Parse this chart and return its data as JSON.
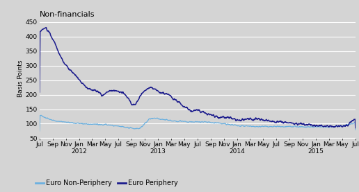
{
  "title": "Non-financials",
  "ylabel": "Basis Points",
  "ylim": [
    50,
    460
  ],
  "yticks": [
    50,
    100,
    150,
    200,
    250,
    300,
    350,
    400,
    450
  ],
  "color_periphery": "#1a1a8c",
  "color_non_periphery": "#6ab0e0",
  "background_color": "#d4d4d4",
  "legend_labels": [
    "Euro Non-Periphery",
    "Euro Periphery"
  ],
  "x_tick_labels": [
    "Jul",
    "Sep",
    "Nov",
    "Jan",
    "Mar",
    "May",
    "Jul",
    "Sep",
    "Nov",
    "Jan",
    "Mar",
    "May",
    "Jul",
    "Sep",
    "Nov",
    "Jan",
    "Mar",
    "May",
    "Jul",
    "Sep",
    "Nov",
    "Jan",
    "Mar",
    "May",
    "Jul"
  ],
  "x_year_labels": {
    "3": "2012",
    "9": "2013",
    "15": "2014",
    "21": "2015"
  },
  "periphery_keypoints": [
    [
      0,
      415
    ],
    [
      10,
      425
    ],
    [
      20,
      432
    ],
    [
      35,
      408
    ],
    [
      50,
      378
    ],
    [
      65,
      340
    ],
    [
      80,
      310
    ],
    [
      100,
      285
    ],
    [
      120,
      265
    ],
    [
      140,
      240
    ],
    [
      155,
      225
    ],
    [
      165,
      218
    ],
    [
      180,
      215
    ],
    [
      195,
      210
    ],
    [
      205,
      195
    ],
    [
      215,
      205
    ],
    [
      230,
      215
    ],
    [
      245,
      215
    ],
    [
      260,
      212
    ],
    [
      275,
      207
    ],
    [
      290,
      190
    ],
    [
      305,
      163
    ],
    [
      315,
      168
    ],
    [
      325,
      185
    ],
    [
      340,
      210
    ],
    [
      355,
      220
    ],
    [
      365,
      225
    ],
    [
      380,
      218
    ],
    [
      395,
      208
    ],
    [
      410,
      205
    ],
    [
      425,
      200
    ],
    [
      440,
      185
    ],
    [
      455,
      175
    ],
    [
      470,
      162
    ],
    [
      485,
      152
    ],
    [
      500,
      143
    ],
    [
      515,
      148
    ],
    [
      525,
      145
    ],
    [
      540,
      138
    ],
    [
      555,
      132
    ],
    [
      570,
      128
    ],
    [
      585,
      125
    ],
    [
      605,
      122
    ],
    [
      625,
      120
    ],
    [
      645,
      115
    ],
    [
      660,
      114
    ],
    [
      675,
      115
    ],
    [
      690,
      118
    ],
    [
      705,
      117
    ],
    [
      720,
      116
    ],
    [
      735,
      113
    ],
    [
      750,
      112
    ],
    [
      765,
      108
    ],
    [
      780,
      108
    ],
    [
      795,
      107
    ],
    [
      810,
      105
    ],
    [
      825,
      103
    ],
    [
      840,
      100
    ],
    [
      855,
      98
    ],
    [
      870,
      97
    ],
    [
      885,
      96
    ],
    [
      895,
      95
    ],
    [
      910,
      94
    ],
    [
      925,
      93
    ],
    [
      940,
      92
    ],
    [
      955,
      91
    ],
    [
      965,
      91
    ],
    [
      975,
      91
    ],
    [
      985,
      91
    ],
    [
      995,
      92
    ],
    [
      1005,
      94
    ],
    [
      1015,
      98
    ],
    [
      1025,
      107
    ],
    [
      1035,
      113
    ],
    [
      1039,
      118
    ]
  ],
  "nonperiphery_keypoints": [
    [
      0,
      132
    ],
    [
      20,
      120
    ],
    [
      40,
      113
    ],
    [
      60,
      108
    ],
    [
      80,
      106
    ],
    [
      100,
      104
    ],
    [
      120,
      102
    ],
    [
      140,
      100
    ],
    [
      160,
      99
    ],
    [
      180,
      98
    ],
    [
      200,
      97
    ],
    [
      220,
      96
    ],
    [
      240,
      94
    ],
    [
      260,
      91
    ],
    [
      280,
      88
    ],
    [
      300,
      86
    ],
    [
      310,
      83
    ],
    [
      320,
      82
    ],
    [
      330,
      84
    ],
    [
      345,
      100
    ],
    [
      360,
      116
    ],
    [
      375,
      119
    ],
    [
      390,
      118
    ],
    [
      405,
      115
    ],
    [
      420,
      113
    ],
    [
      440,
      110
    ],
    [
      460,
      108
    ],
    [
      480,
      107
    ],
    [
      500,
      106
    ],
    [
      520,
      106
    ],
    [
      540,
      107
    ],
    [
      560,
      105
    ],
    [
      580,
      103
    ],
    [
      600,
      101
    ],
    [
      620,
      98
    ],
    [
      640,
      95
    ],
    [
      660,
      93
    ],
    [
      680,
      92
    ],
    [
      700,
      91
    ],
    [
      720,
      90
    ],
    [
      740,
      90
    ],
    [
      760,
      90
    ],
    [
      780,
      90
    ],
    [
      800,
      90
    ],
    [
      820,
      90
    ],
    [
      840,
      90
    ],
    [
      860,
      89
    ],
    [
      880,
      89
    ],
    [
      900,
      89
    ],
    [
      920,
      89
    ],
    [
      940,
      89
    ],
    [
      960,
      89
    ],
    [
      975,
      90
    ],
    [
      990,
      91
    ],
    [
      1005,
      94
    ],
    [
      1020,
      98
    ],
    [
      1035,
      103
    ],
    [
      1039,
      105
    ]
  ]
}
